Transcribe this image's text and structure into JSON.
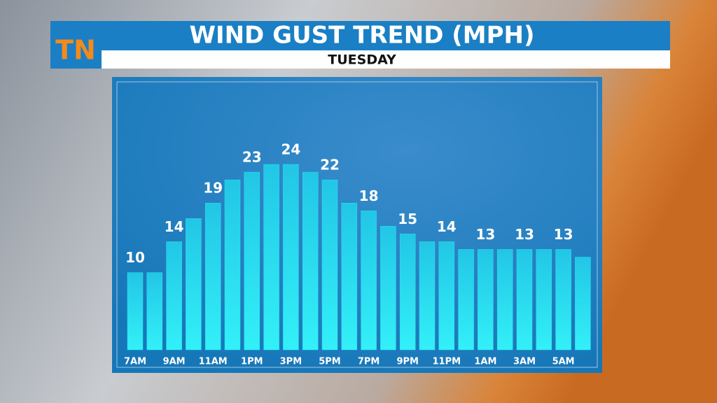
{
  "logo": "TN",
  "chart_data": {
    "type": "bar",
    "title": "WIND GUST TREND (MPH)",
    "subtitle": "TUESDAY",
    "categories": [
      "7AM",
      null,
      "9AM",
      null,
      "11AM",
      null,
      "1PM",
      null,
      "3PM",
      null,
      "5PM",
      null,
      "7PM",
      null,
      "9PM",
      null,
      "11PM",
      null,
      "1AM",
      null,
      "3AM",
      null,
      "5AM",
      null
    ],
    "values": [
      10,
      10,
      14,
      17,
      19,
      22,
      23,
      24,
      24,
      23,
      22,
      19,
      18,
      16,
      15,
      14,
      14,
      13,
      13,
      13,
      13,
      13,
      13,
      12
    ],
    "value_labels": [
      "10",
      null,
      "14",
      null,
      "19",
      null,
      "23",
      null,
      "24",
      null,
      "22",
      null,
      "18",
      null,
      "15",
      null,
      "14",
      null,
      "13",
      null,
      "13",
      null,
      "13",
      null
    ],
    "color": "#29e3f2"
  }
}
